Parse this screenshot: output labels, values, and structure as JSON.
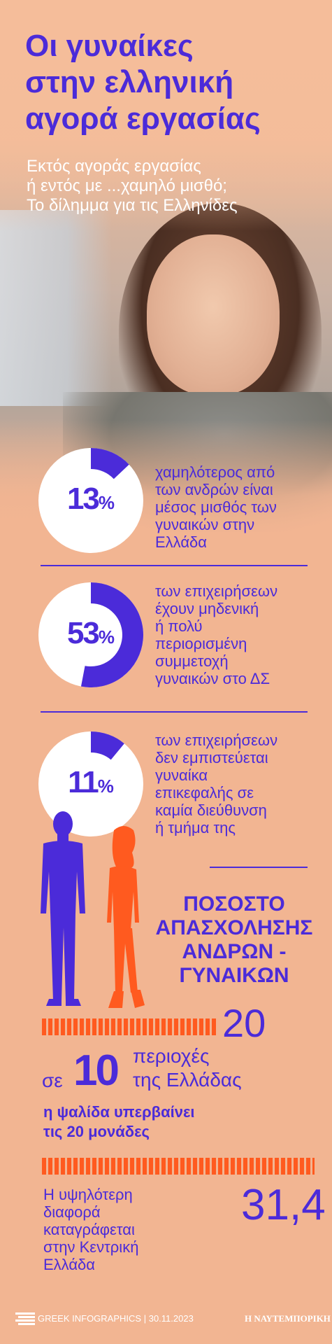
{
  "header": {
    "title_lines": [
      "Οι γυναίκες",
      "στην ελληνική",
      "αγορά εργασίας"
    ],
    "subtitle_lines": [
      "Εκτός αγοράς εργασίας",
      "ή εντός με ...χαμηλό μισθό;",
      "Το δίλημμα για τις Ελληνίδες"
    ]
  },
  "stats": [
    {
      "value": 13,
      "number": "13",
      "unit": "%",
      "text_lines": [
        "χαμηλότερος από",
        "των ανδρών είναι",
        "μέσος μισθός των",
        "γυναικών στην",
        "Ελλάδα"
      ]
    },
    {
      "value": 53,
      "number": "53",
      "unit": "%",
      "text_lines": [
        "των επιχειρήσεων",
        "έχουν μηδενική",
        "ή πολύ",
        "περιορισμένη",
        "συμμετοχή",
        "γυναικών στο ΔΣ"
      ]
    },
    {
      "value": 11,
      "number": "11",
      "unit": "%",
      "text_lines": [
        "των επιχειρήσεων",
        "δεν εμπιστεύεται",
        "γυναίκα",
        "επικεφαλής σε",
        "καμία διεύθυνση",
        "ή τμήμα της"
      ]
    }
  ],
  "employment": {
    "heading_lines": [
      "ΠΟΣΟΣΤΟ",
      "ΑΠΑΣΧΟΛΗΣΗΣ",
      "ΑΝΔΡΩΝ -",
      "ΓΥΝΑΙΚΩΝ"
    ],
    "gap_value": "20",
    "regions_prefix": "σε",
    "regions_count": "10",
    "regions_suffix_lines": [
      "περιοχές",
      "της Ελλάδας"
    ],
    "gap_note_lines": [
      "η ψαλίδα υπερβαίνει",
      "τις 20 μονάδες"
    ],
    "max_value": "31,4",
    "max_note_lines": [
      "Η υψηλότερη",
      "διαφορά",
      "καταγράφεται",
      "στην Κεντρική",
      "Ελλάδα"
    ]
  },
  "footer": {
    "brand_left": "GREEK INFOGRAPHICS",
    "separator": "|",
    "date": "30.11.2023",
    "brand_right": "Η ΝΑΥΤΕΜΠΟΡΙΚΗ"
  },
  "colors": {
    "background": "#f2b592",
    "accent_purple": "#4b2bd9",
    "accent_orange": "#ff5a1f",
    "white": "#ffffff"
  },
  "icons": [
    "man-silhouette-icon",
    "woman-silhouette-icon",
    "infographics-logo-icon"
  ]
}
